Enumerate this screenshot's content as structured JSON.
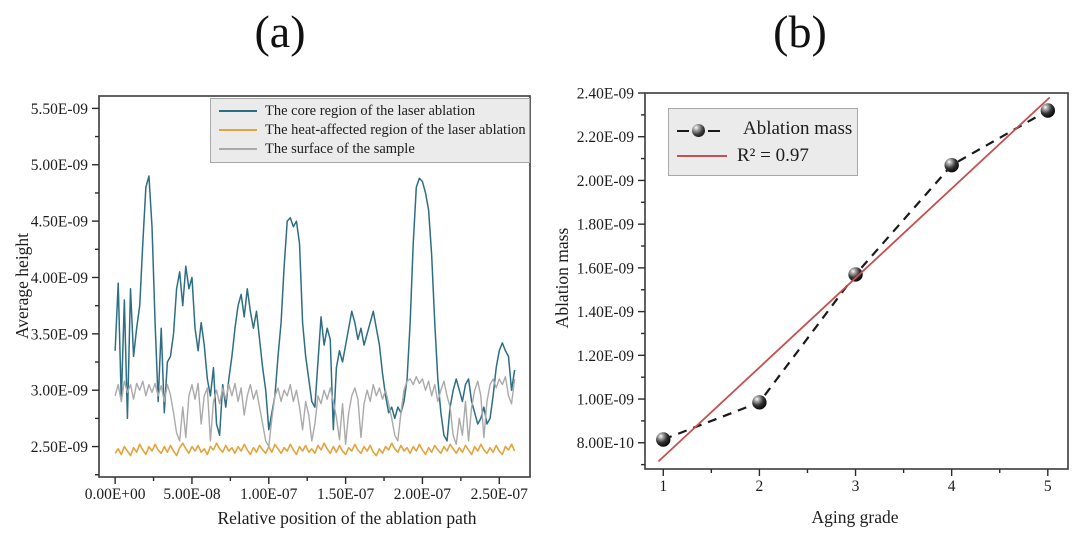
{
  "chart_data": [
    {
      "type": "line",
      "title": "(a)",
      "xlabel": "Relative position of the ablation path",
      "ylabel": "Average height",
      "x_scale": 1e-07,
      "y_scale": 1e-09,
      "xlim": [
        -0.105,
        2.7
      ],
      "ylim": [
        2.23,
        5.61
      ],
      "x_ticks": [
        0,
        0.5,
        1.0,
        1.5,
        2.0,
        2.5
      ],
      "x_tick_labels": [
        "0.00E+00",
        "5.00E-08",
        "1.00E-07",
        "1.50E-07",
        "2.00E-07",
        "2.50E-07"
      ],
      "x_minor_ticks": [
        0.25,
        0.75,
        1.25,
        1.75,
        2.25
      ],
      "y_ticks": [
        2.5,
        3.0,
        3.5,
        4.0,
        4.5,
        5.0,
        5.5
      ],
      "y_tick_labels": [
        "2.50E-09",
        "3.00E-09",
        "3.50E-09",
        "4.00E-09",
        "4.50E-09",
        "5.00E-09",
        "5.50E-09"
      ],
      "y_minor_ticks": [
        2.25,
        2.75,
        3.25,
        3.75,
        4.25,
        4.75,
        5.25
      ],
      "grid": false,
      "legend_position": "top-center-inside",
      "frame_color": "#474747",
      "tick_color": "#2b2b2b",
      "legend_background": "#ebebeb",
      "legend_border": "#a8a8a8",
      "x_start": 0,
      "x_step": 0.02,
      "series": [
        {
          "name": "The core region of the laser ablation",
          "color": "#2e6e84",
          "width": 1.5,
          "values": [
            3.35,
            3.95,
            2.9,
            3.8,
            2.75,
            3.9,
            3.3,
            3.55,
            3.75,
            4.3,
            4.8,
            4.9,
            4.45,
            3.6,
            2.9,
            3.55,
            2.8,
            3.25,
            3.3,
            3.5,
            3.9,
            4.05,
            3.75,
            4.1,
            3.9,
            4.0,
            3.55,
            3.35,
            3.6,
            3.4,
            3.1,
            2.95,
            3.2,
            2.7,
            2.6,
            3.05,
            2.85,
            3.1,
            3.3,
            3.55,
            3.75,
            3.85,
            3.65,
            3.9,
            3.7,
            3.55,
            3.7,
            3.45,
            3.2,
            3.0,
            2.65,
            2.8,
            2.95,
            3.3,
            3.6,
            4.1,
            4.5,
            4.53,
            4.45,
            4.5,
            4.3,
            3.6,
            3.3,
            3.1,
            2.9,
            2.85,
            3.25,
            3.65,
            3.4,
            3.55,
            3.45,
            2.65,
            3.2,
            3.35,
            3.25,
            3.4,
            3.55,
            3.7,
            3.6,
            3.45,
            3.55,
            3.4,
            3.5,
            3.6,
            3.7,
            3.55,
            3.4,
            3.15,
            2.95,
            2.8,
            2.85,
            2.75,
            2.85,
            2.8,
            2.9,
            3.1,
            3.6,
            4.3,
            4.8,
            4.88,
            4.85,
            4.75,
            4.6,
            4.2,
            3.6,
            3.1,
            2.8,
            2.6,
            2.55,
            2.85,
            3.0,
            3.1,
            3.0,
            2.9,
            3.05,
            3.1,
            2.9,
            2.8,
            2.7,
            2.75,
            2.85,
            2.7,
            2.75,
            2.95,
            3.2,
            3.35,
            3.42,
            3.35,
            3.3,
            3.0,
            3.18
          ]
        },
        {
          "name": "The heat-affected region of the laser ablation",
          "color": "#e4a33c",
          "width": 1.6,
          "values": [
            2.44,
            2.48,
            2.43,
            2.5,
            2.46,
            2.42,
            2.49,
            2.45,
            2.52,
            2.47,
            2.43,
            2.5,
            2.46,
            2.52,
            2.47,
            2.44,
            2.5,
            2.45,
            2.51,
            2.46,
            2.42,
            2.49,
            2.53,
            2.48,
            2.44,
            2.5,
            2.46,
            2.51,
            2.45,
            2.48,
            2.43,
            2.5,
            2.47,
            2.53,
            2.48,
            2.45,
            2.51,
            2.46,
            2.49,
            2.44,
            2.5,
            2.46,
            2.52,
            2.47,
            2.43,
            2.49,
            2.45,
            2.51,
            2.47,
            2.44,
            2.5,
            2.45,
            2.52,
            2.48,
            2.44,
            2.49,
            2.46,
            2.52,
            2.47,
            2.43,
            2.5,
            2.46,
            2.51,
            2.45,
            2.48,
            2.44,
            2.51,
            2.47,
            2.53,
            2.48,
            2.44,
            2.5,
            2.45,
            2.51,
            2.46,
            2.43,
            2.49,
            2.46,
            2.52,
            2.47,
            2.44,
            2.5,
            2.46,
            2.51,
            2.45,
            2.42,
            2.48,
            2.44,
            2.5,
            2.47,
            2.53,
            2.48,
            2.45,
            2.51,
            2.46,
            2.49,
            2.44,
            2.5,
            2.46,
            2.52,
            2.47,
            2.43,
            2.49,
            2.45,
            2.51,
            2.47,
            2.44,
            2.5,
            2.46,
            2.52,
            2.48,
            2.44,
            2.49,
            2.45,
            2.51,
            2.47,
            2.43,
            2.5,
            2.46,
            2.52,
            2.47,
            2.44,
            2.49,
            2.45,
            2.51,
            2.46,
            2.43,
            2.5,
            2.47,
            2.52,
            2.46
          ]
        },
        {
          "name": "The surface of the sample",
          "color": "#aaaaaa",
          "width": 1.4,
          "values": [
            2.95,
            3.05,
            2.9,
            3.08,
            2.98,
            3.05,
            2.92,
            3.06,
            3.0,
            3.08,
            2.95,
            3.05,
            2.98,
            3.06,
            2.95,
            3.04,
            2.9,
            3.05,
            2.96,
            2.8,
            2.62,
            2.55,
            2.85,
            2.58,
            2.95,
            3.05,
            2.92,
            3.06,
            2.7,
            2.95,
            3.02,
            2.55,
            2.9,
            3.0,
            2.88,
            3.02,
            2.92,
            3.05,
            2.95,
            3.06,
            2.9,
            3.02,
            2.78,
            2.95,
            3.05,
            2.92,
            3.0,
            2.85,
            2.7,
            2.55,
            2.5,
            2.75,
            2.95,
            3.02,
            2.9,
            3.0,
            2.95,
            3.05,
            2.9,
            3.0,
            2.85,
            2.65,
            2.9,
            2.78,
            2.55,
            2.7,
            2.95,
            2.88,
            3.0,
            2.92,
            3.02,
            2.9,
            2.76,
            2.56,
            2.88,
            2.52,
            2.8,
            2.95,
            3.02,
            2.92,
            2.58,
            2.88,
            3.0,
            2.9,
            3.05,
            2.95,
            3.02,
            2.92,
            3.0,
            2.88,
            2.75,
            2.6,
            2.55,
            2.8,
            3.0,
            3.08,
            3.1,
            3.05,
            3.12,
            3.06,
            3.1,
            3.0,
            3.08,
            2.95,
            3.05,
            2.9,
            3.0,
            3.08,
            2.95,
            2.85,
            2.6,
            2.52,
            2.75,
            2.6,
            2.9,
            2.55,
            2.85,
            3.0,
            3.08,
            2.95,
            2.58,
            2.9,
            3.05,
            3.1,
            3.02,
            3.1,
            3.05,
            3.12,
            2.95,
            2.88,
            3.1
          ]
        }
      ]
    },
    {
      "type": "scatter",
      "title": "(b)",
      "xlabel": "Aging grade",
      "ylabel": "Ablation mass",
      "y_scale": 1e-09,
      "xlim": [
        0.81,
        5.21
      ],
      "ylim": [
        0.68,
        2.4
      ],
      "x_ticks": [
        1,
        2,
        3,
        4,
        5
      ],
      "x_tick_labels": [
        "1",
        "2",
        "3",
        "4",
        "5"
      ],
      "x_minor_ticks": [
        1.5,
        2.5,
        3.5,
        4.5
      ],
      "y_ticks": [
        0.8,
        1.0,
        1.2,
        1.4,
        1.6,
        1.8,
        2.0,
        2.2,
        2.4
      ],
      "y_tick_labels": [
        "8.00E-10",
        "1.00E-09",
        "1.20E-09",
        "1.40E-09",
        "1.60E-09",
        "1.80E-09",
        "2.00E-09",
        "2.20E-09",
        "2.40E-09"
      ],
      "y_minor_ticks": [
        0.7,
        0.9,
        1.1,
        1.3,
        1.5,
        1.7,
        1.9,
        2.1,
        2.3
      ],
      "grid": false,
      "legend_position": "top-left-inside",
      "frame_color": "#474747",
      "tick_color": "#2b2b2b",
      "legend_background": "#ebebeb",
      "legend_border": "#a8a8a8",
      "series": [
        {
          "name": "Ablation mass",
          "style": "dashed-marker",
          "color": "#1a1a1a",
          "width": 2.2,
          "marker": "sphere",
          "x": [
            1,
            2,
            3,
            4,
            5
          ],
          "values": [
            0.815,
            0.985,
            1.57,
            2.07,
            2.32
          ]
        },
        {
          "name": "R² = 0.97",
          "style": "solid",
          "color": "#c4504f",
          "width": 1.8,
          "x": [
            0.95,
            5.02
          ],
          "values": [
            0.715,
            2.38
          ]
        }
      ]
    }
  ]
}
